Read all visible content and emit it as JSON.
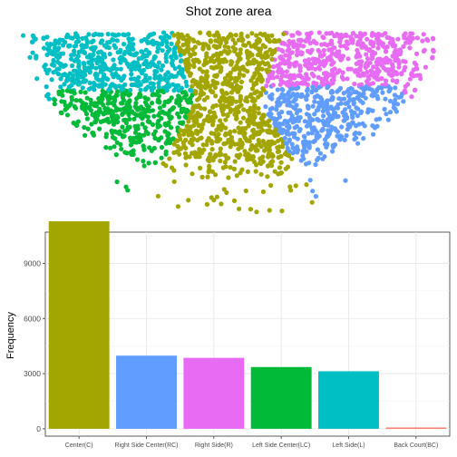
{
  "chart_data": [
    {
      "type": "scatter",
      "title": "Shot zone area",
      "xlabel": "",
      "ylabel": "",
      "grid": false,
      "axes": false,
      "zones": [
        {
          "name": "Center(C)",
          "color": "#a3a500"
        },
        {
          "name": "Right Side Center(RC)",
          "color": "#619cff"
        },
        {
          "name": "Right Side(R)",
          "color": "#e76bf3"
        },
        {
          "name": "Left Side Center(LC)",
          "color": "#00ba38"
        },
        {
          "name": "Left Side(L)",
          "color": "#00bfc4"
        },
        {
          "name": "Back Court(BC)",
          "color": "#f8766d"
        }
      ]
    },
    {
      "type": "bar",
      "title": "",
      "xlabel": "",
      "ylabel": "Frequency",
      "ylim": [
        -400,
        10700
      ],
      "yticks": [
        0,
        3000,
        6000,
        9000
      ],
      "ytick_labels": [
        "0",
        "3000",
        "6000",
        "9000"
      ],
      "grid": true,
      "categories": [
        "Center(C)",
        "Right Side Center(RC)",
        "Right Side(R)",
        "Left Side Center(LC)",
        "Left Side(L)",
        "Back Court(BC)"
      ],
      "values": [
        11290,
        3980,
        3860,
        3360,
        3130,
        70
      ],
      "colors": [
        "#a3a500",
        "#619cff",
        "#e76bf3",
        "#00ba38",
        "#00bfc4",
        "#f8766d"
      ]
    }
  ]
}
